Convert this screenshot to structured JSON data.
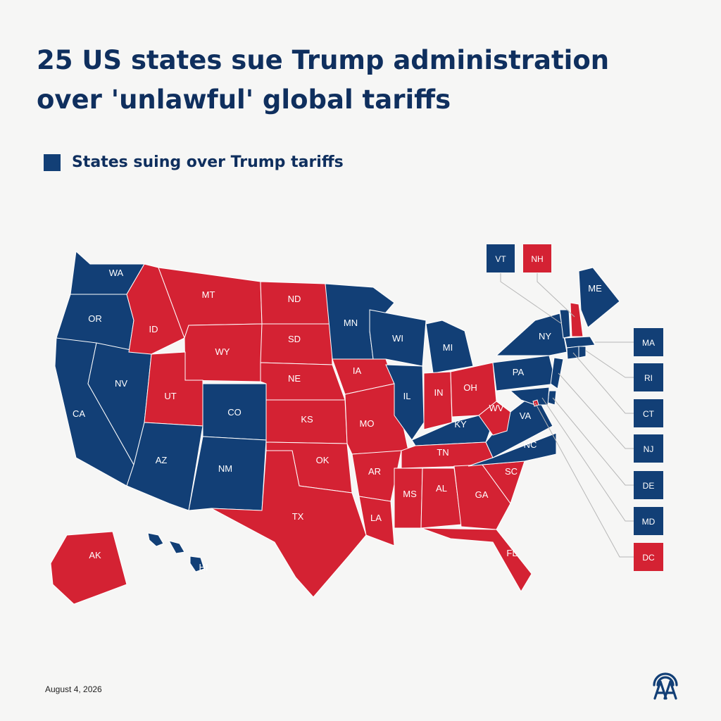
{
  "title": "25 US states sue Trump administration over 'unlawful' global tariffs",
  "legend": {
    "label": "States suing over Trump tariffs",
    "color": "#123f76"
  },
  "colors": {
    "suing": "#123f76",
    "not_suing": "#d42233",
    "background": "#f6f6f5"
  },
  "states": {
    "WA": "suing",
    "OR": "suing",
    "CA": "suing",
    "NV": "suing",
    "AZ": "suing",
    "NM": "suing",
    "CO": "suing",
    "MN": "suing",
    "WI": "suing",
    "MI": "suing",
    "IL": "suing",
    "KY": "suing",
    "PA": "suing",
    "NY": "suing",
    "VA": "suing",
    "NC": "suing",
    "ME": "suing",
    "VT": "suing",
    "MA": "suing",
    "RI": "suing",
    "CT": "suing",
    "NJ": "suing",
    "DE": "suing",
    "MD": "suing",
    "HI": "suing",
    "ID": "not_suing",
    "MT": "not_suing",
    "WY": "not_suing",
    "UT": "not_suing",
    "ND": "not_suing",
    "SD": "not_suing",
    "NE": "not_suing",
    "KS": "not_suing",
    "OK": "not_suing",
    "TX": "not_suing",
    "IA": "not_suing",
    "MO": "not_suing",
    "AR": "not_suing",
    "LA": "not_suing",
    "IN": "not_suing",
    "OH": "not_suing",
    "WV": "not_suing",
    "TN": "not_suing",
    "MS": "not_suing",
    "AL": "not_suing",
    "GA": "not_suing",
    "SC": "not_suing",
    "FL": "not_suing",
    "AK": "not_suing",
    "NH": "not_suing",
    "DC": "not_suing"
  },
  "callouts": [
    "VT",
    "NH",
    "MA",
    "RI",
    "CT",
    "NJ",
    "DE",
    "MD",
    "DC"
  ],
  "date": "August 4, 2026",
  "logo": {
    "icon": "aa-agency-logo-icon",
    "color": "#123f76"
  }
}
